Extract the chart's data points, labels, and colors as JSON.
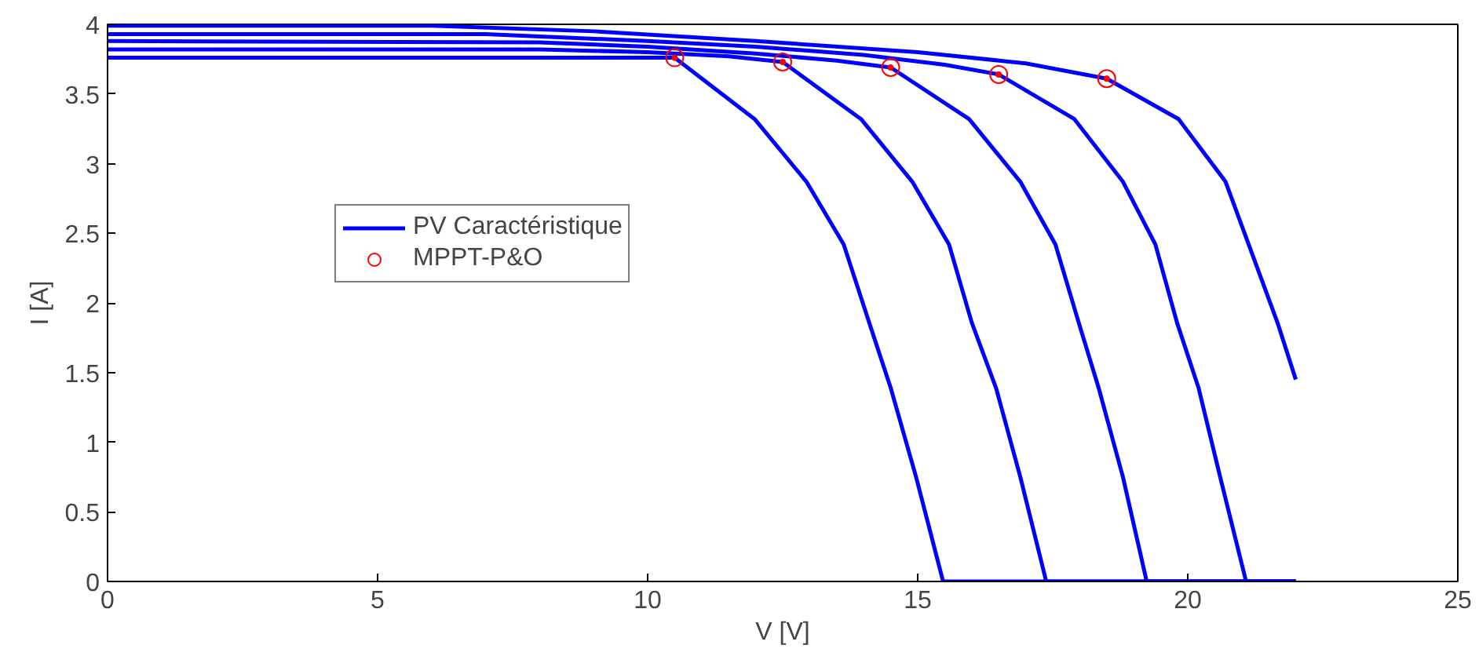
{
  "chart_data": {
    "type": "line",
    "xlabel": "V [V]",
    "ylabel": "I [A]",
    "xlim": [
      0,
      25
    ],
    "ylim": [
      0,
      4
    ],
    "xticks": [
      0,
      5,
      10,
      15,
      20,
      25
    ],
    "yticks": [
      0,
      0.5,
      1,
      1.5,
      2,
      2.5,
      3,
      3.5,
      4
    ],
    "grid": false,
    "legend": "left",
    "line_style": "solid",
    "series": [
      {
        "name": "PV Caractéristique",
        "color": "#0000ff",
        "x": [
          0,
          9,
          10.5,
          11.98,
          12.94,
          13.63,
          14.1,
          14.5,
          14.97,
          15.47,
          22
        ],
        "values": [
          3.76,
          3.76,
          3.76,
          3.32,
          2.87,
          2.42,
          1.86,
          1.39,
          0.75,
          0,
          0
        ]
      },
      {
        "color": "#0000ff",
        "x": [
          0,
          8,
          10,
          11.5,
          12.5,
          13.95,
          14.9,
          15.58,
          16.0,
          16.45,
          16.9,
          17.38,
          22
        ],
        "values": [
          3.82,
          3.82,
          3.8,
          3.77,
          3.73,
          3.32,
          2.87,
          2.42,
          1.86,
          1.39,
          0.75,
          0,
          0
        ]
      },
      {
        "color": "#0000ff",
        "x": [
          0,
          8,
          10,
          12,
          13.5,
          14.5,
          15.95,
          16.9,
          17.55,
          17.98,
          18.35,
          18.8,
          19.24,
          22
        ],
        "values": [
          3.88,
          3.87,
          3.84,
          3.79,
          3.74,
          3.69,
          3.32,
          2.87,
          2.42,
          1.86,
          1.39,
          0.75,
          0,
          0
        ]
      },
      {
        "color": "#0000ff",
        "x": [
          0,
          7,
          10,
          12,
          14,
          15.5,
          16.5,
          17.9,
          18.8,
          19.4,
          19.8,
          20.2,
          20.6,
          21.08,
          22
        ],
        "values": [
          3.93,
          3.93,
          3.88,
          3.84,
          3.78,
          3.71,
          3.64,
          3.32,
          2.87,
          2.42,
          1.86,
          1.39,
          0.75,
          0,
          0
        ]
      },
      {
        "color": "#0000ff",
        "x": [
          0,
          6,
          9,
          12,
          15,
          17,
          18.5,
          19.83,
          20.7,
          21.66,
          22
        ],
        "values": [
          3.99,
          3.99,
          3.95,
          3.88,
          3.8,
          3.72,
          3.61,
          3.32,
          2.87,
          1.86,
          1.45
        ]
      },
      {
        "name": "MPPT-P&O",
        "type": "scatter",
        "marker": "circle",
        "color": "#ff0000",
        "x": [
          10.5,
          12.5,
          14.5,
          16.5,
          18.5
        ],
        "values": [
          3.76,
          3.73,
          3.69,
          3.64,
          3.61
        ]
      }
    ]
  }
}
